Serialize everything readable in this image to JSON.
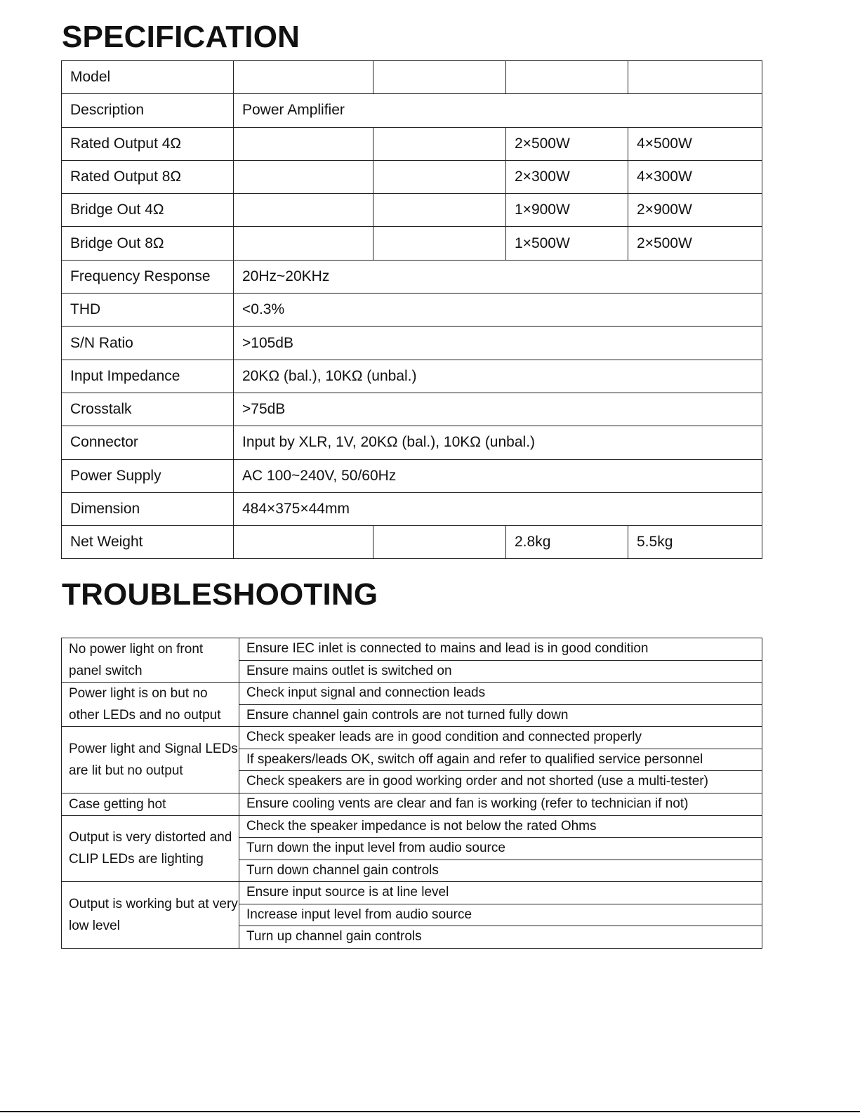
{
  "specification": {
    "title": "SPECIFICATION",
    "rows": [
      {
        "label": "Model",
        "cells": [
          "",
          "",
          "",
          ""
        ]
      },
      {
        "label": "Description",
        "span": "Power Amplifier"
      },
      {
        "label": "Rated Output 4Ω",
        "cells": [
          "",
          "",
          "2×500W",
          "4×500W"
        ]
      },
      {
        "label": "Rated Output 8Ω",
        "cells": [
          "",
          "",
          "2×300W",
          "4×300W"
        ]
      },
      {
        "label": "Bridge Out 4Ω",
        "cells": [
          "",
          "",
          "1×900W",
          "2×900W"
        ]
      },
      {
        "label": "Bridge Out 8Ω",
        "cells": [
          "",
          "",
          "1×500W",
          "2×500W"
        ]
      },
      {
        "label": "Frequency Response",
        "span": "20Hz~20KHz"
      },
      {
        "label": "THD",
        "span": "<0.3%"
      },
      {
        "label": "S/N Ratio",
        "span": ">105dB"
      },
      {
        "label": "Input Impedance",
        "span": "20KΩ (bal.), 10KΩ (unbal.)"
      },
      {
        "label": "Crosstalk",
        "span": ">75dB"
      },
      {
        "label": "Connector",
        "span": "Input by XLR, 1V, 20KΩ (bal.), 10KΩ (unbal.)"
      },
      {
        "label": "Power Supply",
        "span": "AC 100~240V, 50/60Hz"
      },
      {
        "label": "Dimension",
        "span": "484×375×44mm"
      },
      {
        "label": "Net Weight",
        "cells": [
          "",
          "",
          "2.8kg",
          "5.5kg"
        ]
      }
    ]
  },
  "troubleshooting": {
    "title": "TROUBLESHOOTING",
    "groups": [
      {
        "problem": "No power light on front panel switch",
        "solutions": [
          "Ensure IEC inlet is connected to mains and lead is in good condition",
          "Ensure mains outlet is switched on"
        ]
      },
      {
        "problem": "Power light is on but no other LEDs and no output",
        "solutions": [
          "Check input signal and connection leads",
          "Ensure channel gain controls are not turned fully down"
        ]
      },
      {
        "problem": "Power light and Signal LEDs are lit but no output",
        "solutions": [
          "Check speaker leads are in good condition and connected properly",
          "If speakers/leads OK, switch off again and refer to qualified service personnel",
          "Check speakers are in good working order and not shorted (use a multi-tester)"
        ]
      },
      {
        "problem": "Case getting hot",
        "solutions": [
          "Ensure cooling vents are clear and fan is working (refer to technician if not)"
        ]
      },
      {
        "problem": "Output is very distorted and CLIP LEDs are lighting",
        "solutions": [
          "Check the speaker impedance is not below the rated Ohms",
          "Turn down the input level from audio source",
          "Turn down channel gain controls"
        ]
      },
      {
        "problem": "Output is working but at very low level",
        "solutions": [
          "Ensure input source is at line level",
          "Increase input level from audio source",
          "Turn up channel gain controls"
        ]
      }
    ]
  }
}
